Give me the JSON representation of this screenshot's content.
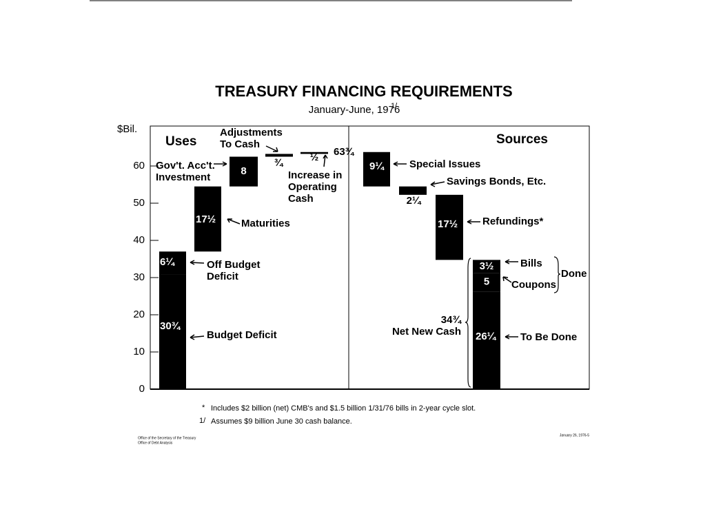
{
  "chart_data": {
    "type": "waterfall",
    "title": "TREASURY FINANCING REQUIREMENTS",
    "subtitle": "January-June, 1976",
    "subtitle_note": "1/",
    "y_label": "$Bil.",
    "ylim": [
      0,
      70
    ],
    "yticks": [
      0,
      10,
      20,
      30,
      40,
      50,
      60
    ],
    "series": [
      {
        "name": "Uses",
        "color": "#000000",
        "direction": "up",
        "categories": [
          "Budget Deficit",
          "Off Budget\nDeficit",
          "Maturities",
          "Gov't. Acc't.\nInvestment",
          "Adjustments\nTo Cash",
          "Increase in\nOperating\nCash"
        ],
        "values": [
          30.75,
          6.25,
          17.5,
          8,
          0.75,
          0.5
        ],
        "value_labels": [
          "30¾",
          "6¼",
          "17½",
          "8",
          "¾",
          "½"
        ]
      },
      {
        "name": "Sources",
        "color": "#000000",
        "direction": "down",
        "categories": [
          "Special Issues",
          "Savings Bonds, Etc.",
          "Refundings*",
          "Bills",
          "Coupons",
          "To Be Done"
        ],
        "values": [
          9.25,
          2.25,
          17.5,
          3.5,
          5,
          26.25
        ],
        "value_labels": [
          "9¼",
          "2¼",
          "17½",
          "3½",
          "5",
          "26¼"
        ]
      }
    ],
    "annotations": {
      "total": "63¾",
      "net_new_cash_value": "34¾",
      "net_new_cash": "Net New Cash",
      "done": "Done"
    },
    "footnotes": [
      "Includes $2 billion (net) CMB's and $1.5 billion 1/31/76 bills in 2-year cycle slot.",
      "Assumes $9 billion June 30 cash balance."
    ],
    "footnote_marks": [
      "*",
      "1/"
    ],
    "footer_left": [
      "Office of the Secretary of the Treasury",
      "Office of Debt Analysis"
    ],
    "footer_right": "January 26, 1976-5"
  }
}
